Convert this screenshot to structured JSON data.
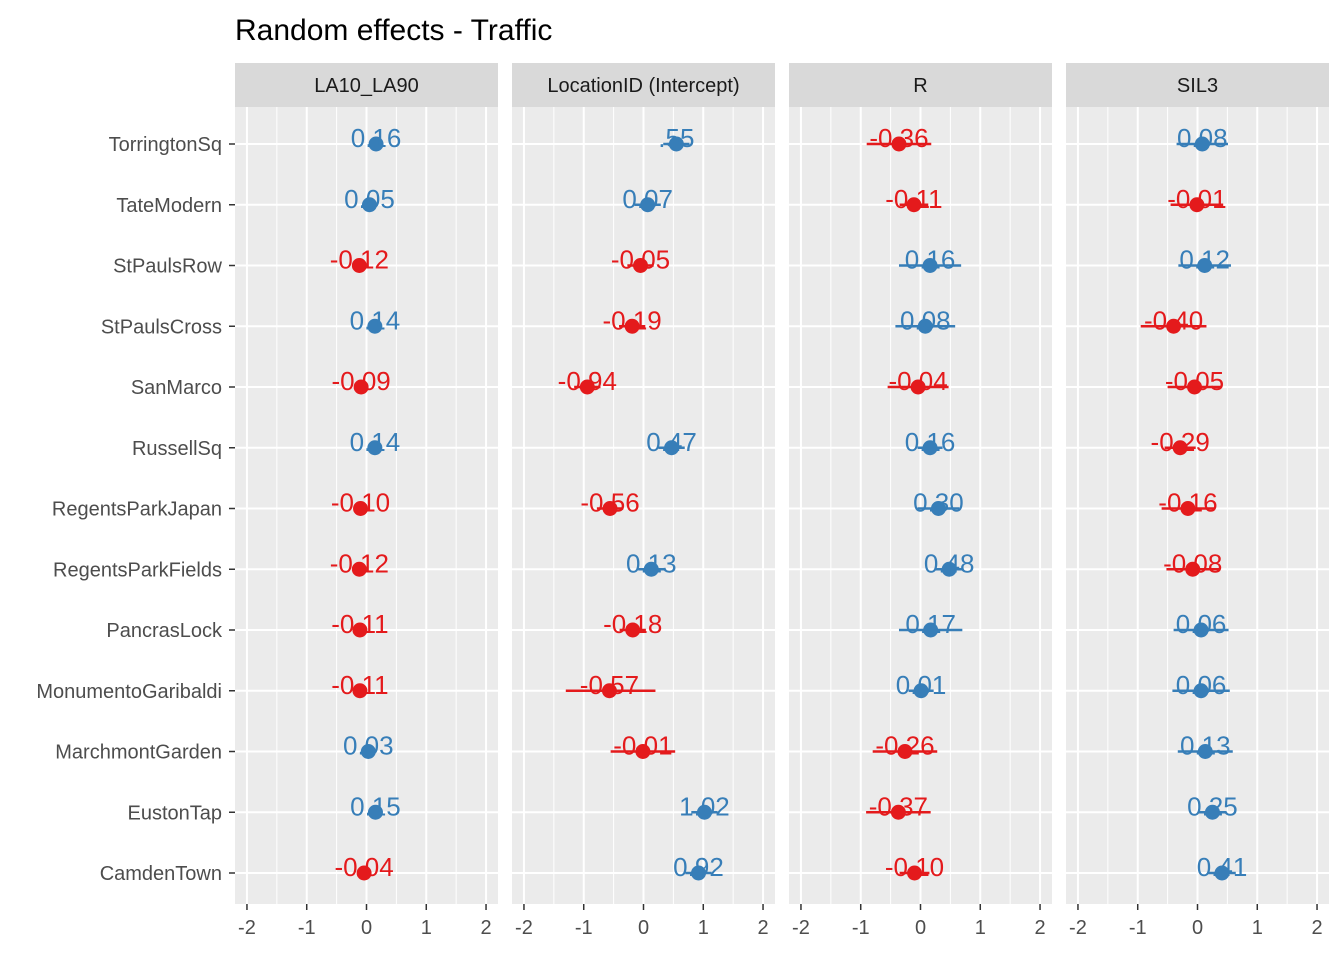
{
  "chart_data": {
    "type": "scatter",
    "title": "Random effects - Traffic",
    "xlabel": "",
    "ylabel": "",
    "xlim": [
      -2.2,
      2.2
    ],
    "xticks": [
      -2,
      -1,
      0,
      1,
      2
    ],
    "xtick_labels": [
      "-2",
      "-1",
      "0",
      "1",
      "2"
    ],
    "grid": true,
    "legend": "none",
    "colors": {
      "positive": "#377EB8",
      "negative": "#E41A1C"
    },
    "categories": [
      "TorringtonSq",
      "TateModern",
      "StPaulsRow",
      "StPaulsCross",
      "SanMarco",
      "RussellSq",
      "RegentsParkJapan",
      "RegentsParkFields",
      "PancrasLock",
      "MonumentoGaribaldi",
      "MarchmontGarden",
      "EustonTap",
      "CamdenTown"
    ],
    "panels": [
      {
        "name": "LA10_LA90",
        "values": [
          0.16,
          0.05,
          -0.12,
          0.14,
          -0.09,
          0.14,
          -0.1,
          -0.12,
          -0.11,
          -0.11,
          0.03,
          0.15,
          -0.04
        ],
        "labels": [
          "0.16",
          "0.05",
          "-0.12",
          "0.14",
          "-0.09",
          "0.14",
          "-0.10",
          "-0.12",
          "-0.11",
          "-0.11",
          "0.03",
          "0.15",
          "-0.04"
        ],
        "ci_low": [
          0.05,
          -0.06,
          -0.24,
          0.03,
          -0.2,
          0.03,
          -0.21,
          -0.23,
          -0.22,
          -0.22,
          -0.08,
          0.04,
          -0.15
        ],
        "ci_high": [
          0.27,
          0.16,
          0.0,
          0.25,
          0.02,
          0.25,
          0.01,
          -0.01,
          0.0,
          0.0,
          0.14,
          0.26,
          0.07
        ]
      },
      {
        "name": "LocationID (Intercept)",
        "values": [
          0.55,
          0.07,
          -0.05,
          -0.19,
          -0.94,
          0.47,
          -0.56,
          0.13,
          -0.18,
          -0.57,
          -0.01,
          1.02,
          0.92
        ],
        "labels": [
          ".55",
          "0.07",
          "-0.05",
          "-0.19",
          "-0.94",
          "0.47",
          "-0.56",
          "0.13",
          "-0.18",
          "-0.57",
          "-0.01",
          "1.02",
          "0.92"
        ],
        "ci_low": [
          0.33,
          -0.15,
          -0.27,
          -0.41,
          -1.16,
          0.25,
          -0.78,
          -0.09,
          -0.4,
          -1.3,
          -0.55,
          0.8,
          0.7
        ],
        "ci_high": [
          0.77,
          0.29,
          0.17,
          0.03,
          -0.72,
          0.69,
          -0.34,
          0.35,
          0.04,
          0.2,
          0.53,
          1.24,
          1.14
        ]
      },
      {
        "name": "R",
        "values": [
          -0.36,
          -0.11,
          0.16,
          0.08,
          -0.04,
          0.16,
          0.3,
          0.48,
          0.17,
          0.01,
          -0.26,
          -0.37,
          -0.1
        ],
        "labels": [
          "-0.36",
          "-0.11",
          "0.16",
          "0.08",
          "-0.04",
          "0.16",
          "0.30",
          "0.48",
          "0.17",
          "0.01",
          "-0.26",
          "-0.37",
          "-0.10"
        ],
        "ci_low": [
          -0.9,
          -0.35,
          -0.36,
          -0.42,
          -0.55,
          -0.05,
          -0.05,
          0.25,
          -0.36,
          -0.2,
          -0.8,
          -0.91,
          -0.35
        ],
        "ci_high": [
          0.18,
          0.13,
          0.68,
          0.58,
          0.47,
          0.37,
          0.65,
          0.71,
          0.7,
          0.22,
          0.28,
          0.17,
          0.15
        ]
      },
      {
        "name": "SIL3",
        "values": [
          0.08,
          -0.01,
          0.12,
          -0.4,
          -0.05,
          -0.29,
          -0.16,
          -0.08,
          0.06,
          0.06,
          0.13,
          0.25,
          0.41
        ],
        "labels": [
          "0.08",
          "-0.01",
          "0.12",
          "-0.40",
          "-0.05",
          "-0.29",
          "-0.16",
          "-0.08",
          "0.06",
          "0.06",
          "0.13",
          "0.25",
          "0.41"
        ],
        "ci_low": [
          -0.35,
          -0.45,
          -0.32,
          -0.95,
          -0.5,
          -0.55,
          -0.6,
          -0.52,
          -0.4,
          -0.42,
          -0.33,
          0.02,
          0.18
        ],
        "ci_high": [
          0.51,
          0.43,
          0.56,
          0.15,
          0.4,
          -0.03,
          0.28,
          0.36,
          0.52,
          0.54,
          0.59,
          0.48,
          0.64
        ]
      }
    ]
  }
}
